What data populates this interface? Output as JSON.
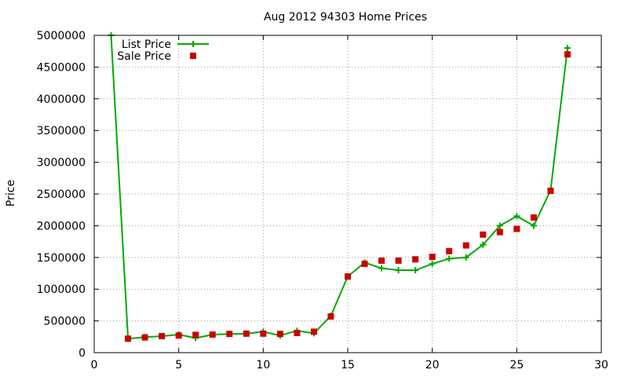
{
  "chart_data": {
    "type": "line",
    "title": "Aug 2012 94303 Home Prices",
    "xlabel": "",
    "ylabel": "Price",
    "xlim": [
      0,
      30
    ],
    "ylim": [
      0,
      5000000
    ],
    "xticks": [
      0,
      5,
      10,
      15,
      20,
      25,
      30
    ],
    "yticks": [
      0,
      500000,
      1000000,
      1500000,
      2000000,
      2500000,
      3000000,
      3500000,
      4000000,
      4500000,
      5000000
    ],
    "grid": true,
    "legend_position": "top-left",
    "series": [
      {
        "name": "List Price",
        "style": "line-with-plus-markers",
        "color": "#00aa00",
        "x": [
          1,
          2,
          3,
          4,
          5,
          6,
          7,
          8,
          9,
          10,
          11,
          12,
          13,
          14,
          15,
          16,
          17,
          18,
          19,
          20,
          21,
          22,
          23,
          24,
          25,
          26,
          27,
          28
        ],
        "y": [
          5000000,
          220000,
          245000,
          260000,
          285000,
          230000,
          285000,
          295000,
          300000,
          330000,
          270000,
          345000,
          305000,
          580000,
          1200000,
          1420000,
          1330000,
          1300000,
          1300000,
          1400000,
          1480000,
          1500000,
          1700000,
          2000000,
          2150000,
          2000000,
          2560000,
          4800000
        ]
      },
      {
        "name": "Sale Price",
        "style": "square-markers",
        "color": "#cc0000",
        "x": [
          2,
          3,
          4,
          5,
          6,
          7,
          8,
          9,
          10,
          11,
          12,
          13,
          14,
          15,
          16,
          17,
          18,
          19,
          20,
          21,
          22,
          23,
          24,
          25,
          26,
          27,
          28
        ],
        "y": [
          220000,
          240000,
          260000,
          270000,
          280000,
          285000,
          295000,
          300000,
          300000,
          295000,
          310000,
          330000,
          570000,
          1200000,
          1400000,
          1450000,
          1450000,
          1470000,
          1510000,
          1600000,
          1690000,
          1860000,
          1900000,
          1950000,
          2130000,
          2550000,
          4700000
        ]
      }
    ]
  }
}
